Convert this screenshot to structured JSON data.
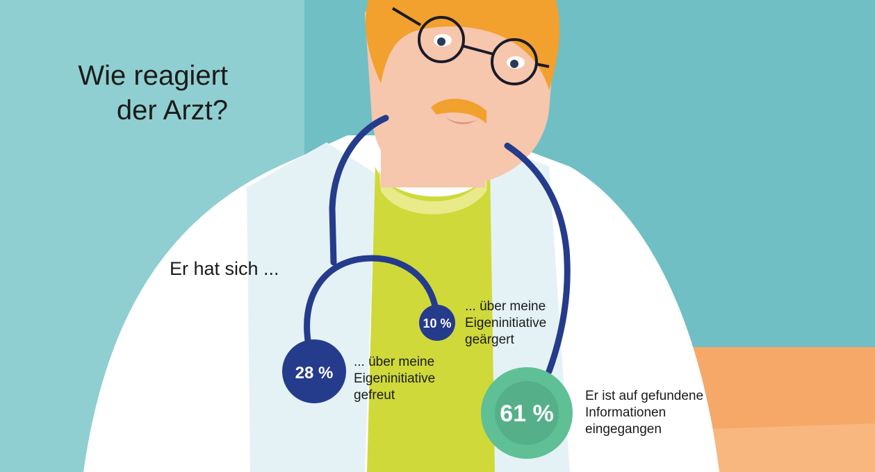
{
  "title": [
    "Wie reagiert",
    "der Arzt?"
  ],
  "intro": "Er hat sich ...",
  "colors": {
    "background": "#6fbfc4",
    "coat": "#ffffff",
    "shirt": "#cfd93a",
    "stethoscope": "#253b8c",
    "highlight": "#5fbf95",
    "hair": "#f2a02e",
    "skin": "#f6c6ad"
  },
  "chart_data": {
    "type": "bubble",
    "items": [
      {
        "label": "10 %",
        "value": 10,
        "caption": [
          "... über meine",
          "Eigeninitiative",
          "geärgert"
        ],
        "color": "#253b8c"
      },
      {
        "label": "28 %",
        "value": 28,
        "caption": [
          "... über meine",
          "Eigeninitiative",
          "gefreut"
        ],
        "color": "#253b8c"
      },
      {
        "label": "61 %",
        "value": 61,
        "caption": [
          "Er ist auf gefundene",
          "Informationen",
          "eingegangen"
        ],
        "color": "#5fbf95"
      }
    ]
  }
}
